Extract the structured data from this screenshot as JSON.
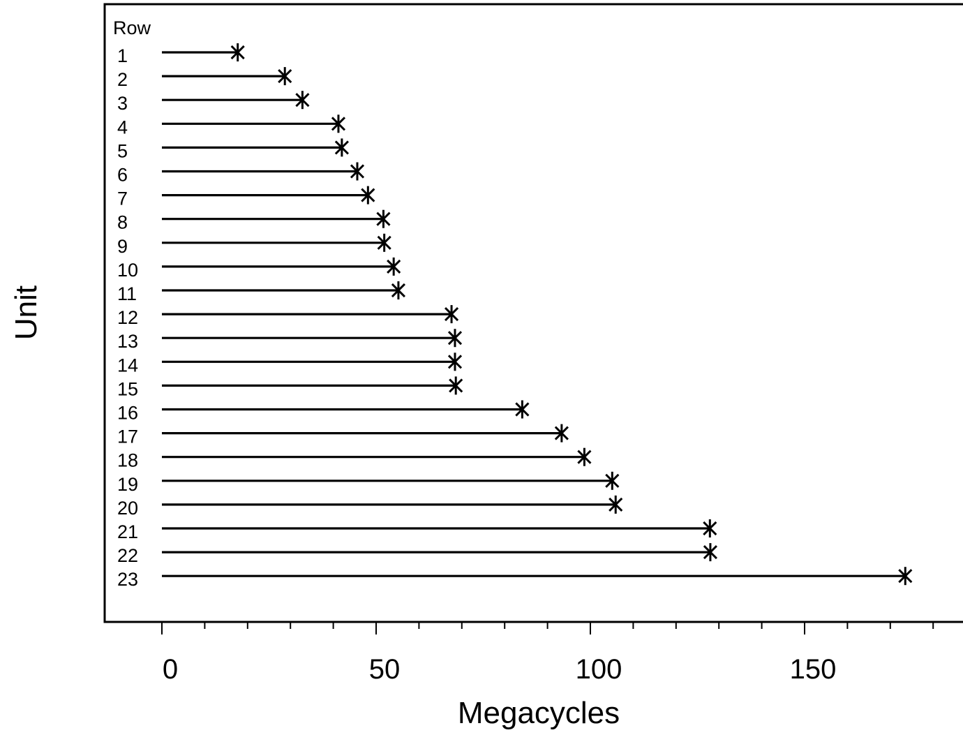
{
  "chart_data": {
    "type": "scatter",
    "style": "dot-plot with lines from zero and star markers",
    "xlabel": "Megacycles",
    "ylabel": "Unit",
    "row_header": "Row",
    "xlim": [
      -13.5,
      185.5
    ],
    "xticks_major": [
      0,
      50,
      100,
      150
    ],
    "xticks_minor": [
      10,
      20,
      30,
      40,
      60,
      70,
      80,
      90,
      110,
      120,
      130,
      140,
      160,
      170,
      180
    ],
    "grid": false,
    "rows": [
      "1",
      "2",
      "3",
      "4",
      "5",
      "6",
      "7",
      "8",
      "9",
      "10",
      "11",
      "12",
      "13",
      "14",
      "15",
      "16",
      "17",
      "18",
      "19",
      "20",
      "21",
      "22",
      "23"
    ],
    "values": [
      17.7,
      28.7,
      32.8,
      41.2,
      42.0,
      45.6,
      48.1,
      51.7,
      51.9,
      54.1,
      55.2,
      67.6,
      68.4,
      68.4,
      68.6,
      84.1,
      93.3,
      98.6,
      105.1,
      105.9,
      127.9,
      128.0,
      173.5
    ],
    "line_color": "#000000",
    "marker": "asterisk",
    "marker_color": "#000000"
  }
}
